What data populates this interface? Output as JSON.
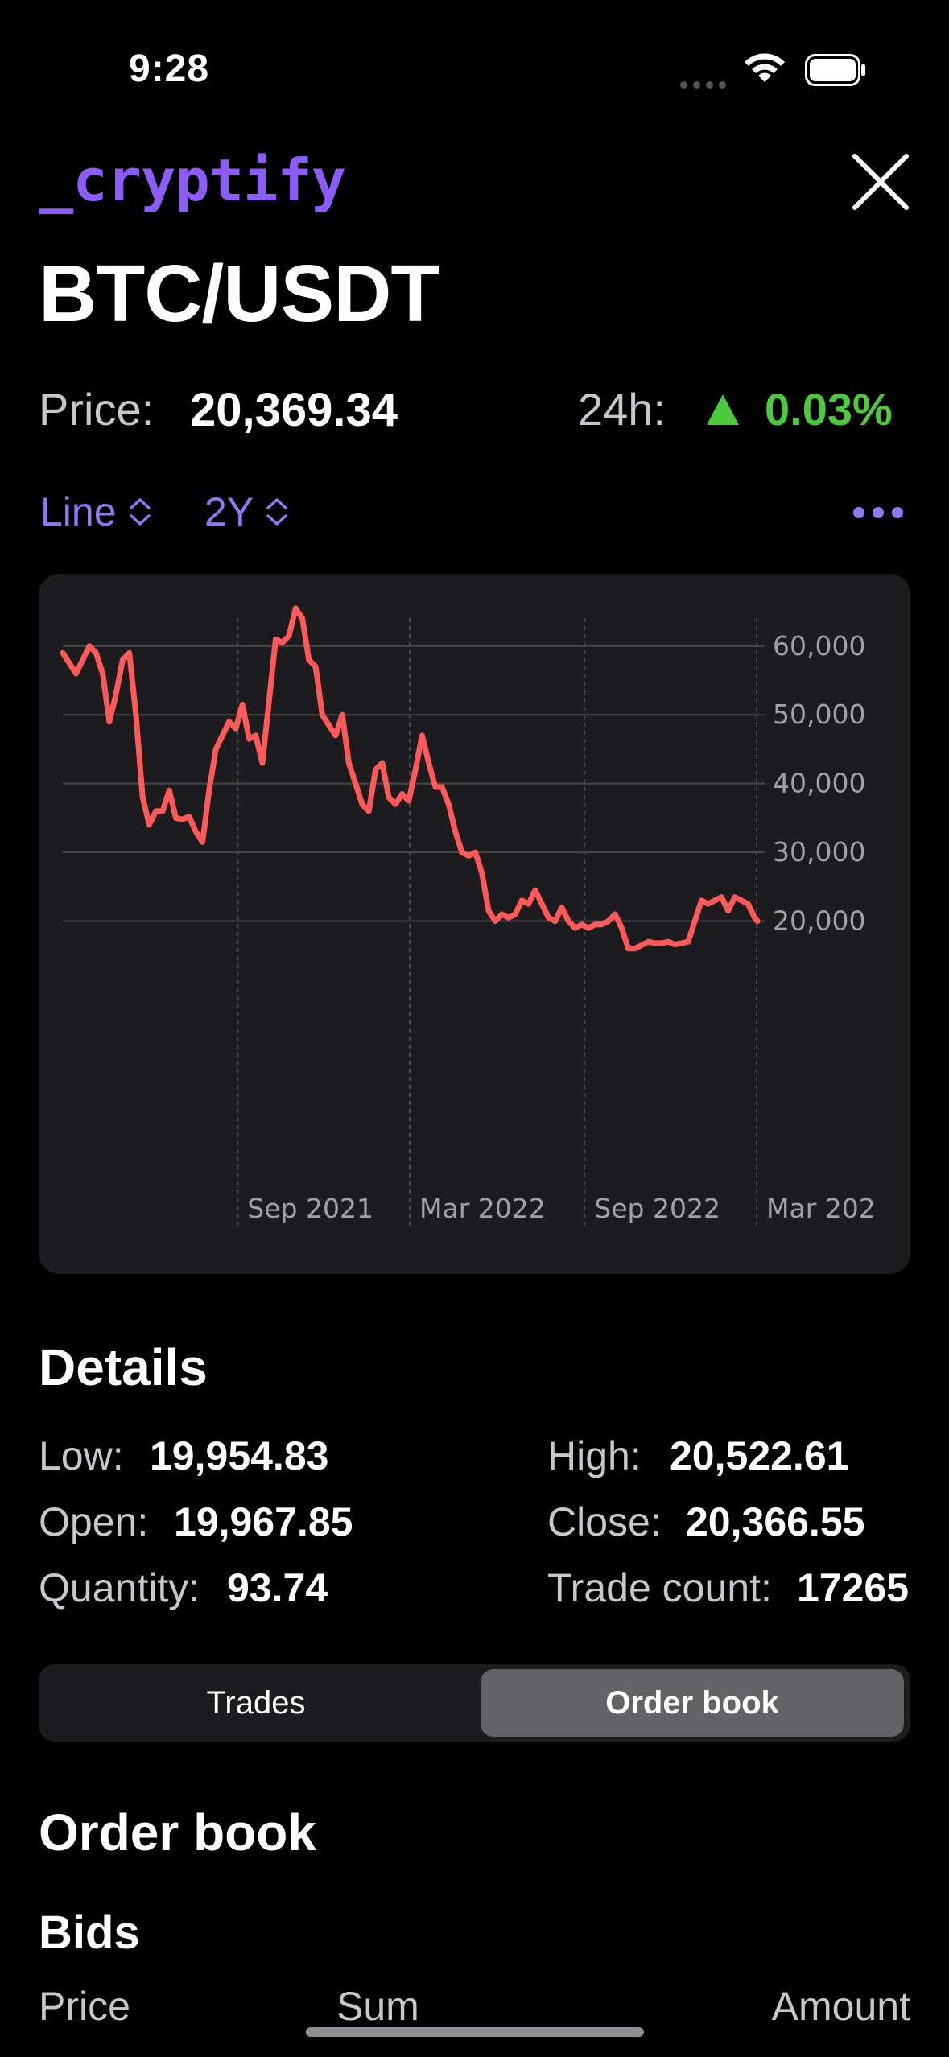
{
  "status_bar": {
    "time": "9:28"
  },
  "header": {
    "logo": "_cryptify",
    "pair": "BTC/USDT",
    "close_icon": "close-icon"
  },
  "ticker": {
    "price_label": "Price:",
    "price_value": "20,369.34",
    "change_label": "24h:",
    "change_value": "0.03%",
    "change_direction": "up",
    "change_color": "#4cc93c"
  },
  "controls": {
    "chart_type": "Line",
    "range": "2Y",
    "accent": "#8b7bf0"
  },
  "chart_data": {
    "type": "line",
    "color": "#ff5a5a",
    "grid": true,
    "x_tick_labels": [
      "Sep 2021",
      "Mar 2022",
      "Sep 2022",
      "Mar 202"
    ],
    "y_tick_labels": [
      "60,000",
      "50,000",
      "40,000",
      "30,000",
      "20,000"
    ],
    "y_ticks": [
      60000,
      50000,
      40000,
      30000,
      20000
    ],
    "ylim": [
      15500,
      67000
    ],
    "x_start": "2021-03",
    "x_end": "2023-03",
    "series": [
      {
        "x": [
          "2021-03-01",
          "2021-03-08",
          "2021-03-15",
          "2021-03-22",
          "2021-03-29",
          "2021-04-05",
          "2021-04-12",
          "2021-04-19",
          "2021-04-26",
          "2021-05-03",
          "2021-05-10",
          "2021-05-17",
          "2021-05-24",
          "2021-05-31",
          "2021-06-07",
          "2021-06-14",
          "2021-06-21",
          "2021-06-28",
          "2021-07-05",
          "2021-07-12",
          "2021-07-19",
          "2021-07-26",
          "2021-08-02",
          "2021-08-09",
          "2021-08-16",
          "2021-08-23",
          "2021-08-30",
          "2021-09-06",
          "2021-09-13",
          "2021-09-20",
          "2021-09-27",
          "2021-10-04",
          "2021-10-11",
          "2021-10-18",
          "2021-10-25",
          "2021-11-01",
          "2021-11-08",
          "2021-11-15",
          "2021-11-22",
          "2021-11-29",
          "2021-12-06",
          "2021-12-13",
          "2021-12-20",
          "2021-12-27",
          "2022-01-03",
          "2022-01-10",
          "2022-01-17",
          "2022-01-24",
          "2022-01-31",
          "2022-02-07",
          "2022-02-14",
          "2022-02-21",
          "2022-02-28",
          "2022-03-07",
          "2022-03-14",
          "2022-03-21",
          "2022-03-28",
          "2022-04-04",
          "2022-04-11",
          "2022-04-18",
          "2022-04-25",
          "2022-05-02",
          "2022-05-09",
          "2022-05-16",
          "2022-05-23",
          "2022-05-30",
          "2022-06-06",
          "2022-06-13",
          "2022-06-20",
          "2022-06-27",
          "2022-07-04",
          "2022-07-11",
          "2022-07-18",
          "2022-07-25",
          "2022-08-01",
          "2022-08-08",
          "2022-08-15",
          "2022-08-22",
          "2022-08-29",
          "2022-09-05",
          "2022-09-12",
          "2022-09-19",
          "2022-09-26",
          "2022-10-03",
          "2022-10-10",
          "2022-10-17",
          "2022-10-24",
          "2022-10-31",
          "2022-11-07",
          "2022-11-14",
          "2022-11-21",
          "2022-11-28",
          "2022-12-05",
          "2022-12-12",
          "2022-12-19",
          "2022-12-26",
          "2023-01-02",
          "2023-01-09",
          "2023-01-16",
          "2023-01-23",
          "2023-01-30",
          "2023-02-06",
          "2023-02-13",
          "2023-02-20",
          "2023-02-27",
          "2023-03-02"
        ],
        "values": [
          59000,
          57500,
          56000,
          58000,
          60000,
          59000,
          56000,
          49000,
          53000,
          58000,
          59000,
          50000,
          38000,
          34000,
          36000,
          36000,
          39000,
          35000,
          34800,
          35200,
          33000,
          31500,
          39000,
          45000,
          47000,
          49000,
          48000,
          51500,
          46500,
          47000,
          43000,
          52000,
          61000,
          60500,
          61500,
          65500,
          64000,
          58000,
          57000,
          50000,
          48500,
          47000,
          50000,
          43000,
          40000,
          37000,
          36000,
          42000,
          43000,
          38000,
          37000,
          38500,
          37500,
          42000,
          47000,
          43000,
          39500,
          39500,
          37000,
          33000,
          30000,
          29500,
          30000,
          27000,
          21500,
          20000,
          21000,
          20500,
          21000,
          23000,
          22500,
          24500,
          22500,
          20500,
          20000,
          22000,
          20000,
          19000,
          19500,
          19000,
          19500,
          19500,
          20000,
          21000,
          19000,
          16000,
          16000,
          16500,
          17000,
          16800,
          16800,
          17000,
          16600,
          16800,
          17000,
          20000,
          23000,
          22500,
          23000,
          23500,
          21500,
          23500,
          23000,
          22500,
          20500,
          20000
        ]
      }
    ]
  },
  "details": {
    "title": "Details",
    "low_label": "Low:",
    "low_value": "19,954.83",
    "high_label": "High:",
    "high_value": "20,522.61",
    "open_label": "Open:",
    "open_value": "19,967.85",
    "close_label": "Close:",
    "close_value": "20,366.55",
    "quantity_label": "Quantity:",
    "quantity_value": "93.74",
    "trade_count_label": "Trade count:",
    "trade_count_value": "17265"
  },
  "segments": {
    "trades": "Trades",
    "order_book": "Order book",
    "selected": "Order book"
  },
  "order_book": {
    "title": "Order book",
    "bids_title": "Bids",
    "columns": [
      "Price",
      "Sum",
      "Amount"
    ]
  }
}
